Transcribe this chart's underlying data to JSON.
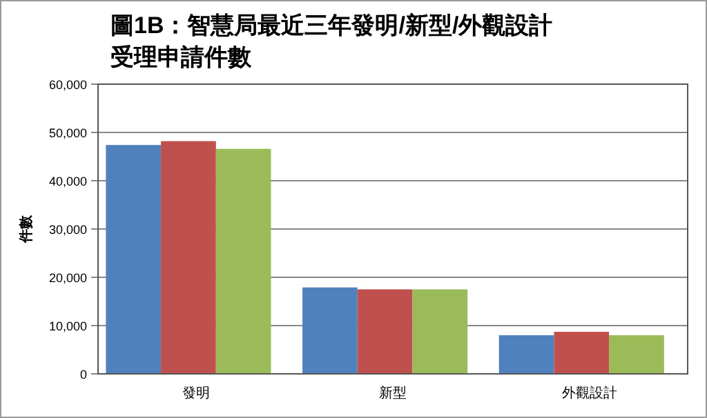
{
  "chart_data": {
    "type": "bar",
    "title": "圖1B：智慧局最近三年發明/新型/外觀設計受理申請件數",
    "ylabel": "件數",
    "categories": [
      "發明",
      "新型",
      "外觀設計"
    ],
    "series": [
      {
        "color": "#4f81bd",
        "values": [
          47400,
          17900,
          8000
        ]
      },
      {
        "color": "#c0504d",
        "values": [
          48200,
          17500,
          8700
        ]
      },
      {
        "color": "#9bbb59",
        "values": [
          46600,
          17500,
          8000
        ]
      }
    ],
    "ylim": [
      0,
      60000
    ],
    "yticks": [
      0,
      {
        "value": 10000,
        "label": "10,000"
      },
      {
        "value": 20000,
        "label": "20,000"
      },
      {
        "value": 30000,
        "label": "30,000"
      },
      {
        "value": 40000,
        "label": "40,000"
      },
      {
        "value": 50000,
        "label": "50,000"
      },
      {
        "value": 60000,
        "label": "60,000"
      }
    ],
    "grid": "y"
  }
}
